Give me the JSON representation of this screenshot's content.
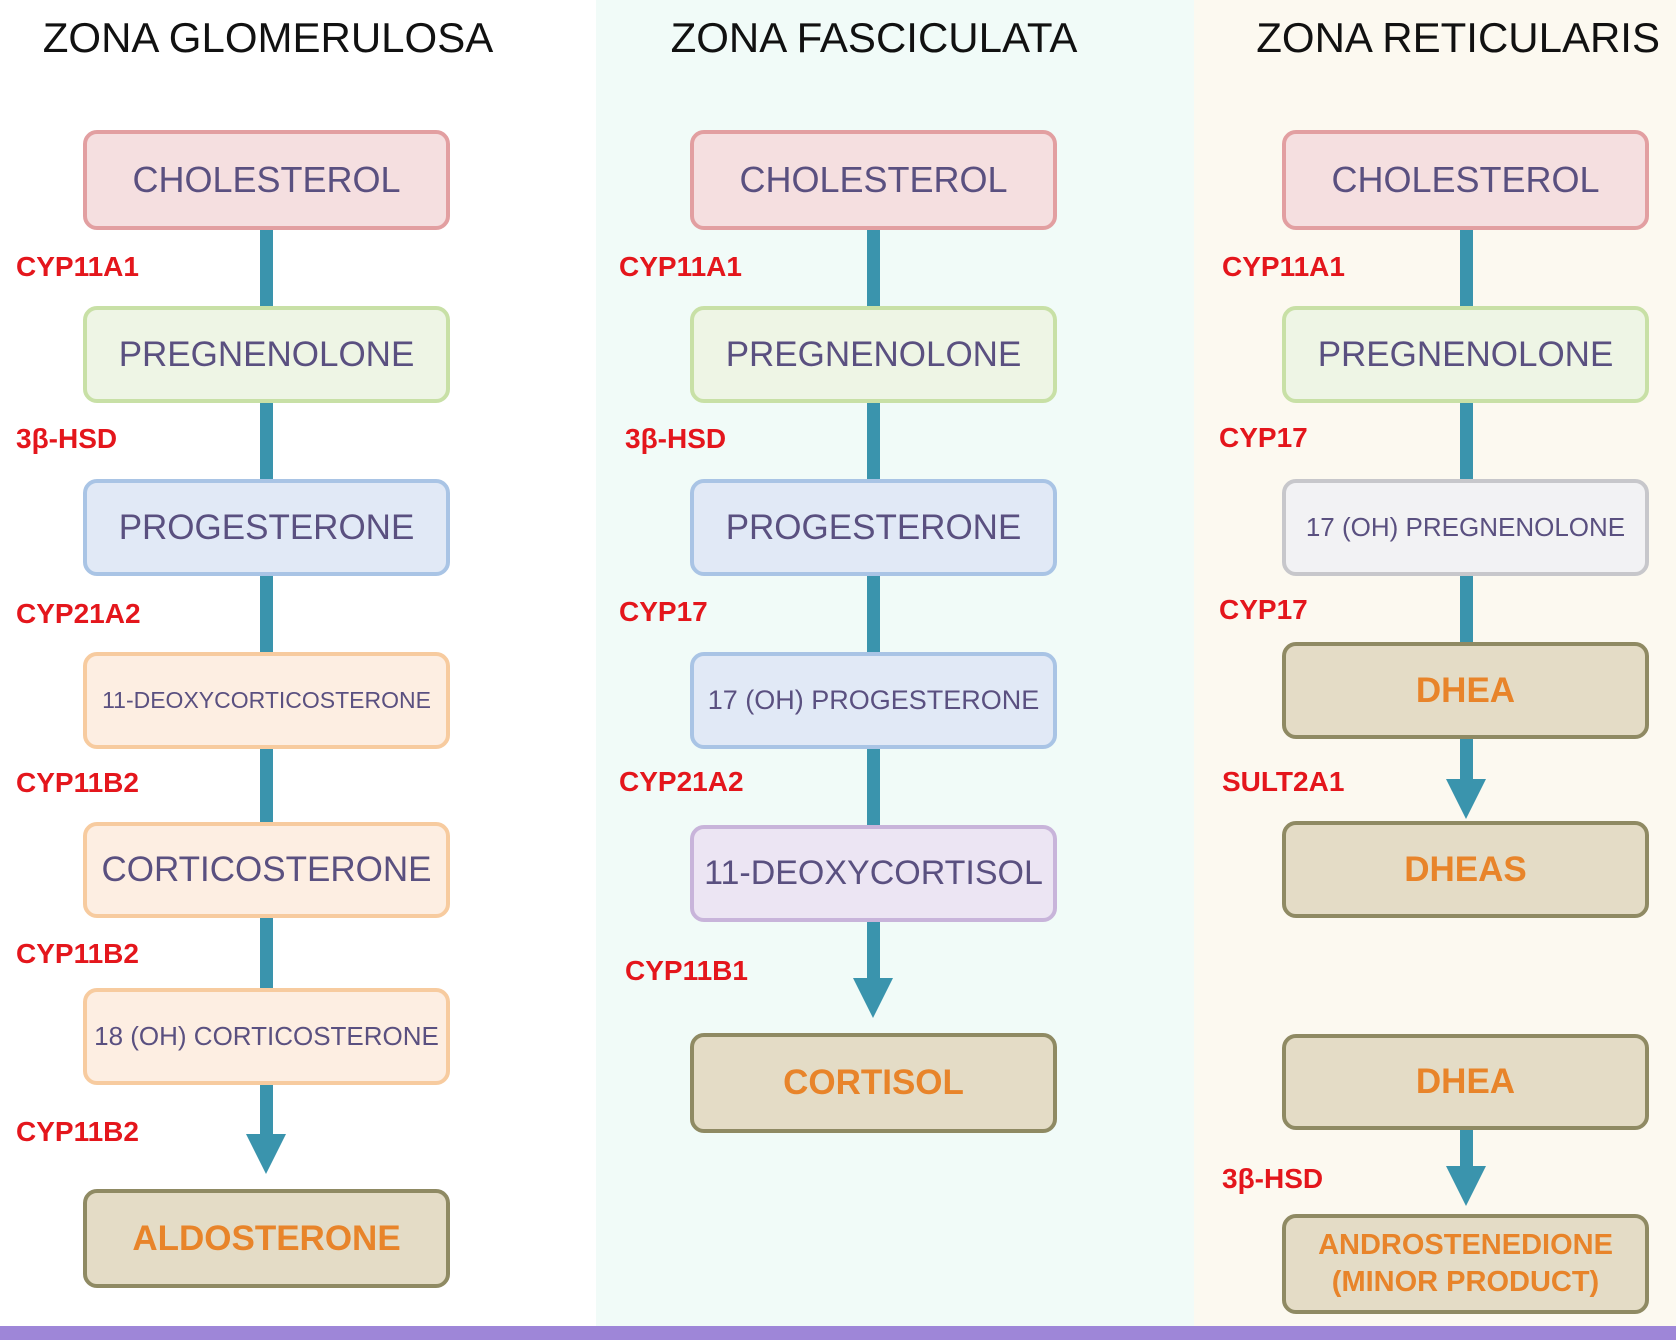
{
  "zones": [
    {
      "title": "ZONA GLOMERULOSA",
      "steps": [
        "CHOLESTEROL",
        "PREGNENOLONE",
        "PROGESTERONE",
        "11-DEOXYCORTICOSTERONE",
        "CORTICOSTERONE",
        "18 (OH) CORTICOSTERONE",
        "ALDOSTERONE"
      ],
      "enzymes": [
        "CYP11A1",
        "3β-HSD",
        "CYP21A2",
        "CYP11B2",
        "CYP11B2",
        "CYP11B2"
      ]
    },
    {
      "title": "ZONA FASCICULATA",
      "steps": [
        "CHOLESTEROL",
        "PREGNENOLONE",
        "PROGESTERONE",
        "17 (OH) PROGESTERONE",
        "11-DEOXYCORTISOL",
        "CORTISOL"
      ],
      "enzymes": [
        "CYP11A1",
        "3β-HSD",
        "CYP17",
        "CYP21A2",
        "CYP11B1"
      ]
    },
    {
      "title": "ZONA RETICULARIS",
      "steps": [
        "CHOLESTEROL",
        "PREGNENOLONE",
        "17 (OH) PREGNENOLONE",
        "DHEA",
        "DHEAS",
        "DHEA",
        "ANDROSTENEDIONE (MINOR PRODUCT)"
      ],
      "enzymes": [
        "CYP11A1",
        "CYP17",
        "CYP17",
        "SULT2A1",
        "3β-HSD"
      ]
    }
  ],
  "colors": {
    "enzyme_label": "#e4161c",
    "connector": "#3a94ad",
    "final_product_text": "#e8842a",
    "footer_bar": "#9e86d8"
  }
}
